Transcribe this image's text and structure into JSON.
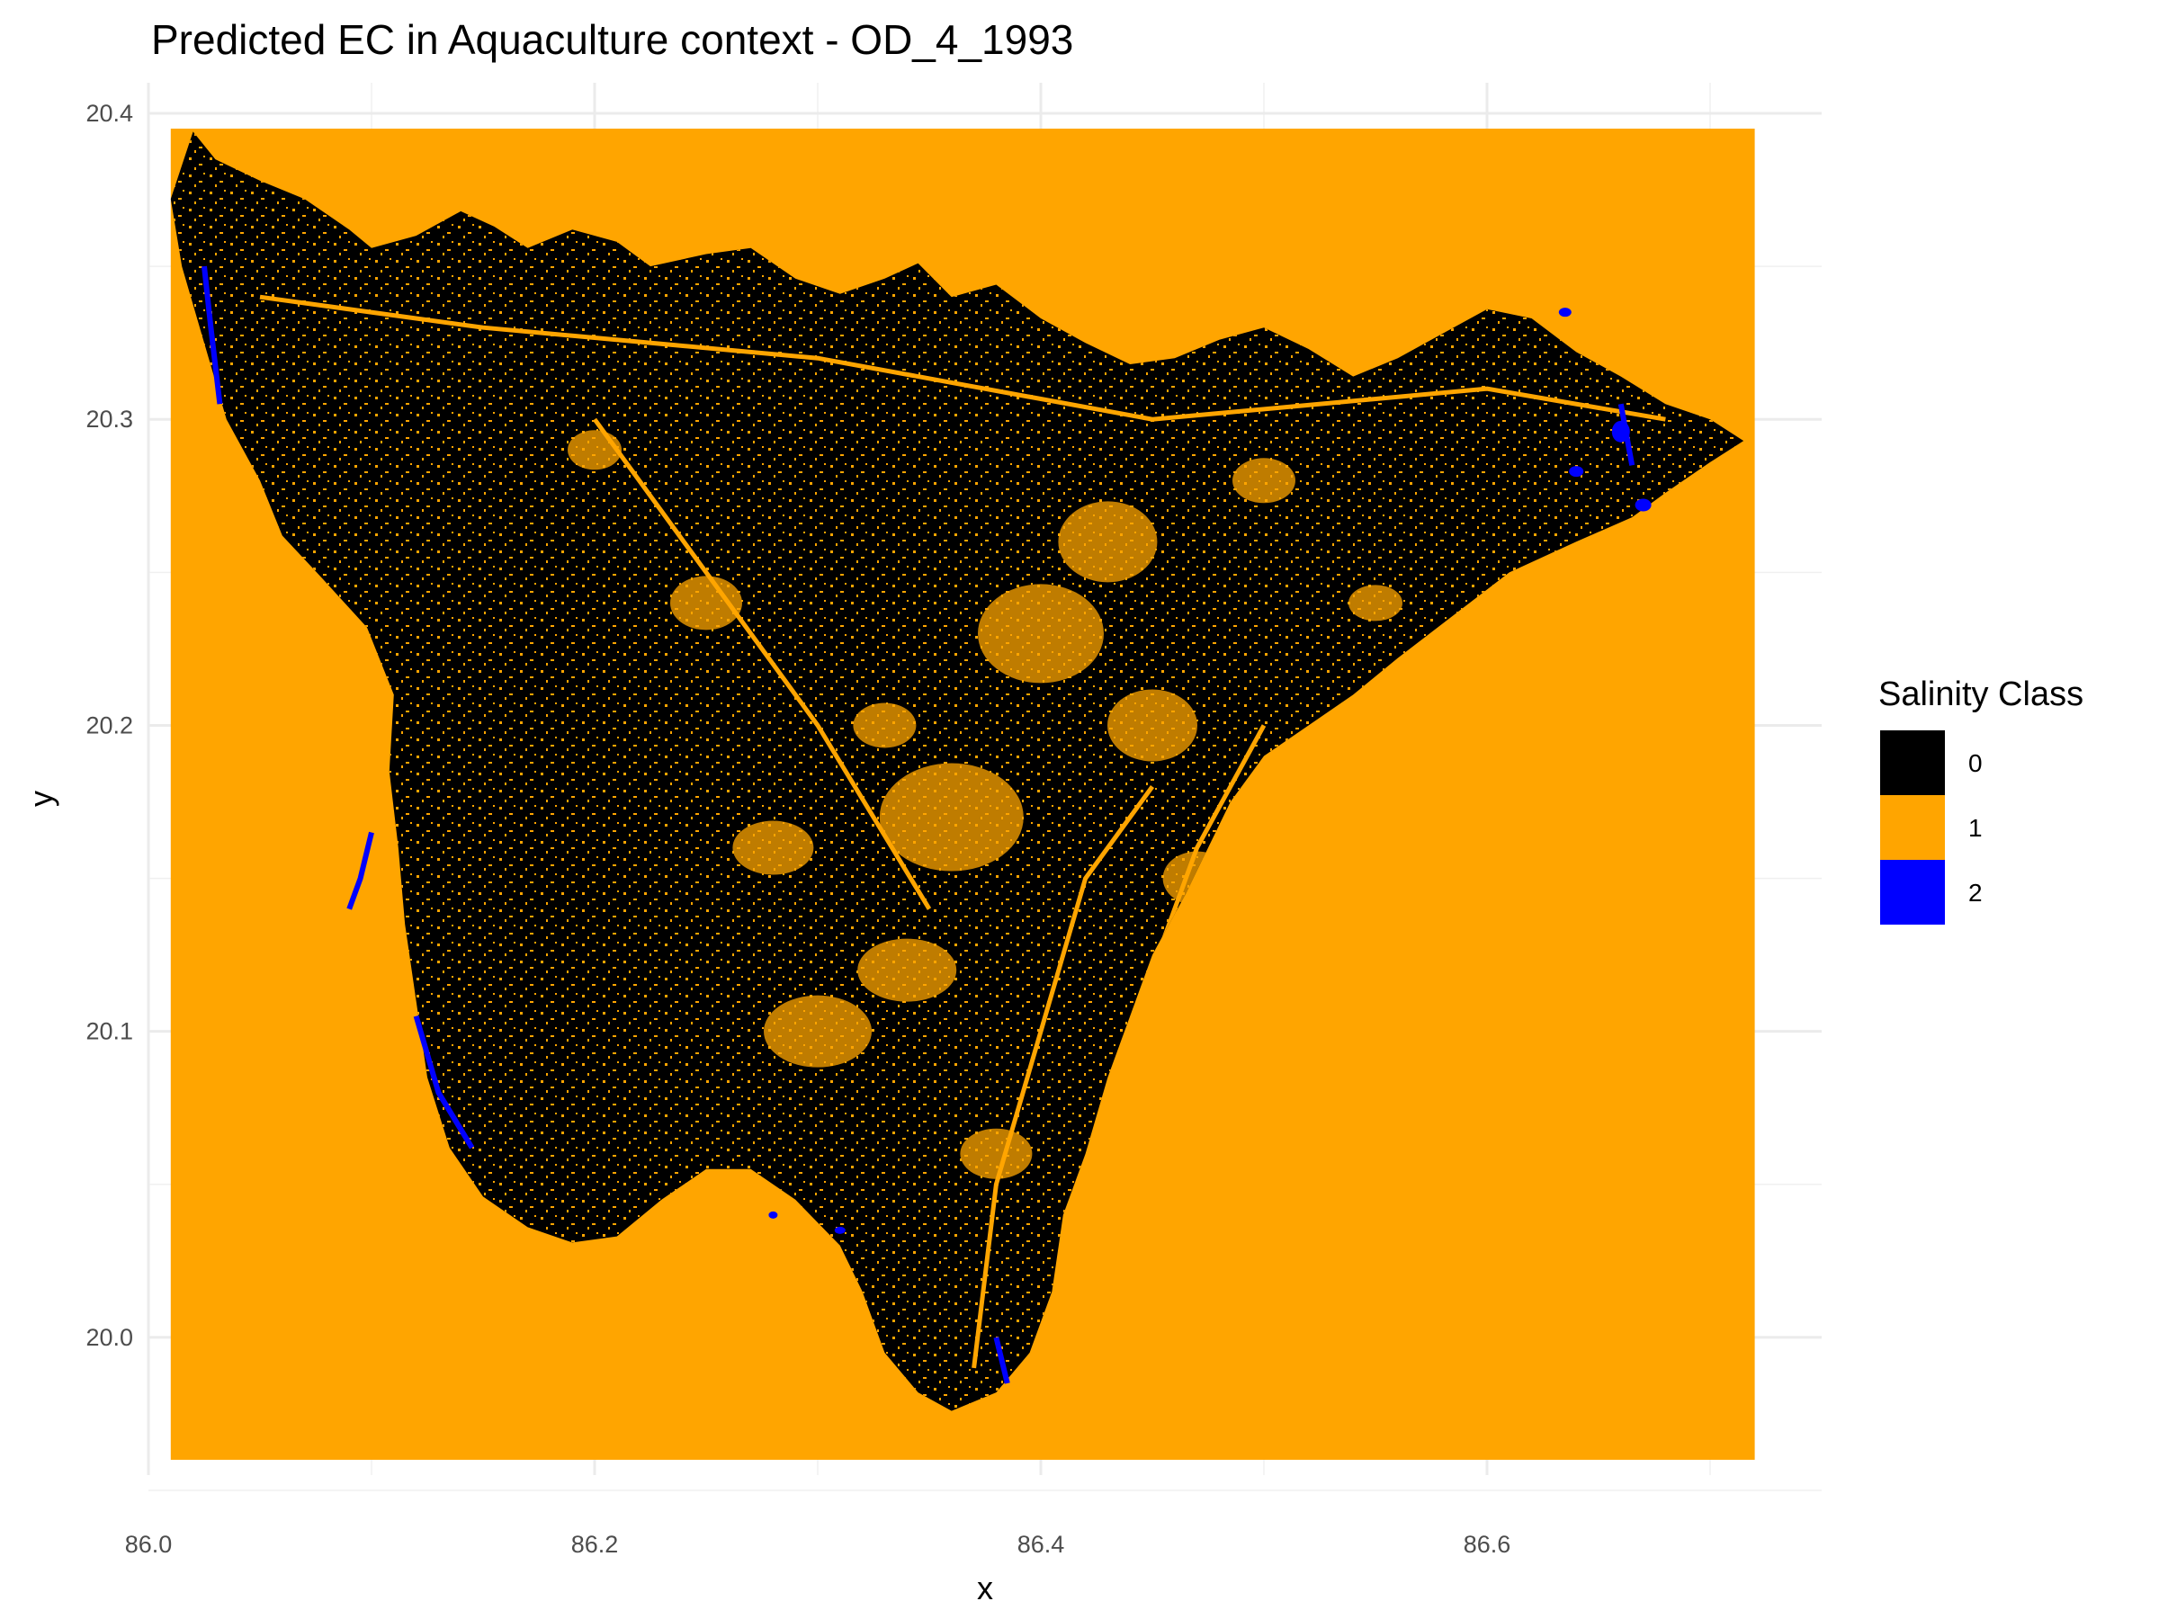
{
  "chart_data": {
    "type": "heatmap",
    "title": "Predicted EC in Aquaculture context - OD_4_1993",
    "xlabel": "x",
    "ylabel": "y",
    "xlim": [
      86.0,
      86.75
    ],
    "ylim": [
      19.955,
      20.41
    ],
    "x_ticks": [
      "86.0",
      "86.2",
      "86.4",
      "86.6"
    ],
    "x_tick_values": [
      86.0,
      86.2,
      86.4,
      86.6
    ],
    "y_ticks": [
      "20.0",
      "20.1",
      "20.2",
      "20.3",
      "20.4"
    ],
    "y_tick_values": [
      20.0,
      20.1,
      20.2,
      20.3,
      20.4
    ],
    "raster_extent": {
      "x": [
        86.01,
        86.72
      ],
      "y": [
        19.96,
        20.395
      ]
    },
    "legend": {
      "title": "Salinity Class",
      "position": "right",
      "entries": [
        {
          "label": "0",
          "color": "#000000"
        },
        {
          "label": "1",
          "color": "#FFA500"
        },
        {
          "label": "2",
          "color": "#0000FF"
        }
      ]
    },
    "background_class": "1",
    "grid": true
  }
}
